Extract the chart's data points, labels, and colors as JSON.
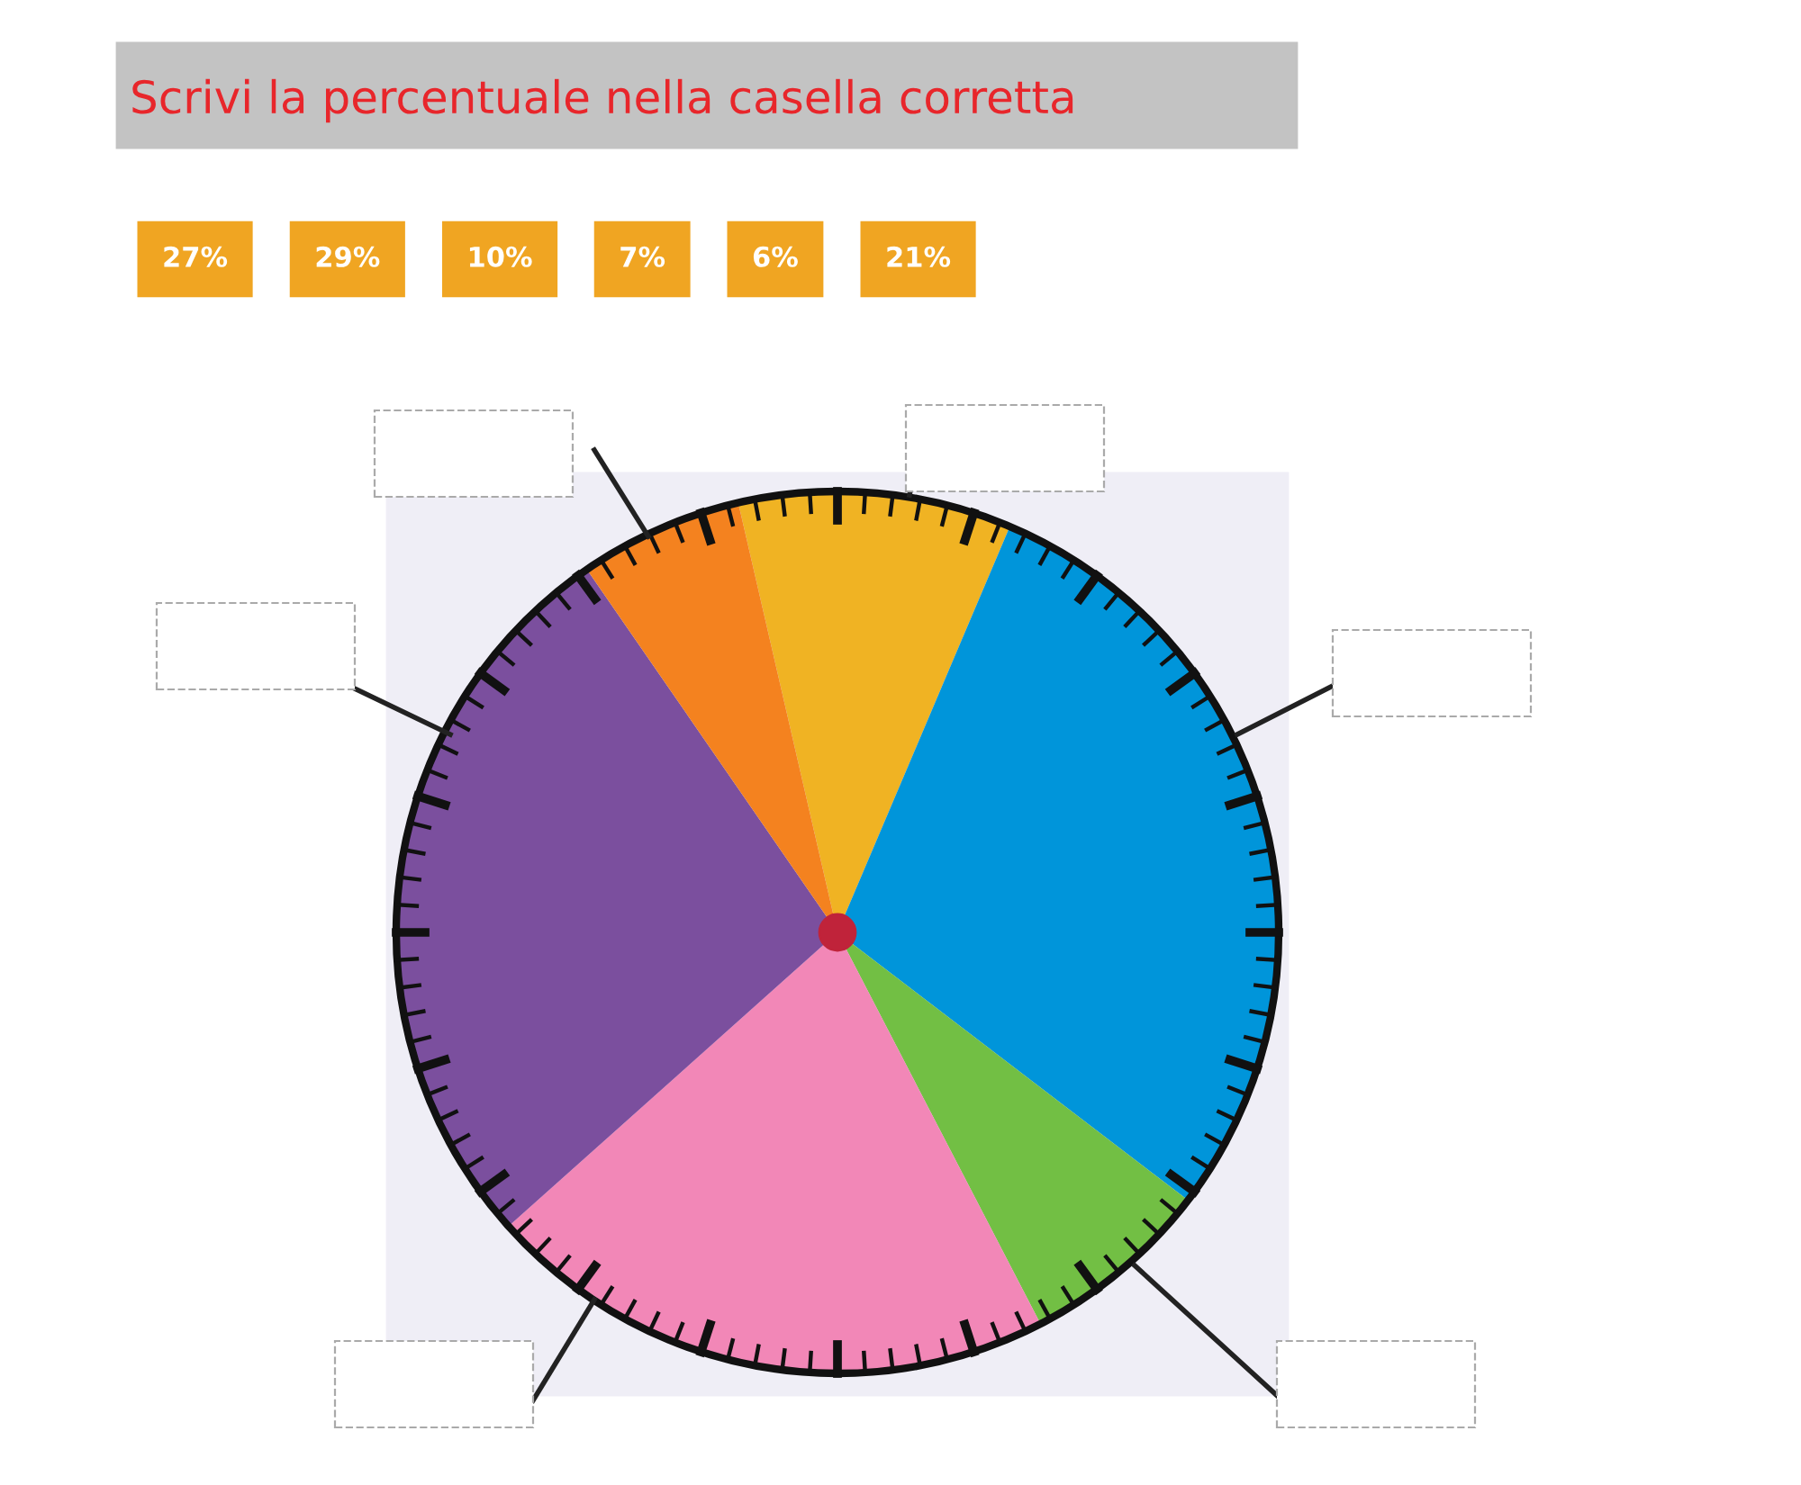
{
  "chart_data": {
    "type": "pie",
    "title": "Scrivi la percentuale nella casella corretta",
    "categories": [
      null,
      null,
      null,
      null,
      null,
      null
    ],
    "values": [
      10,
      29,
      7,
      21,
      27,
      6
    ],
    "colors": [
      "#f0b323",
      "#0095da",
      "#72bf44",
      "#f287b7",
      "#7b4f9e",
      "#f4821f"
    ],
    "annotations": [
      "27%",
      "29%",
      "10%",
      "7%",
      "6%",
      "21%"
    ]
  }
}
